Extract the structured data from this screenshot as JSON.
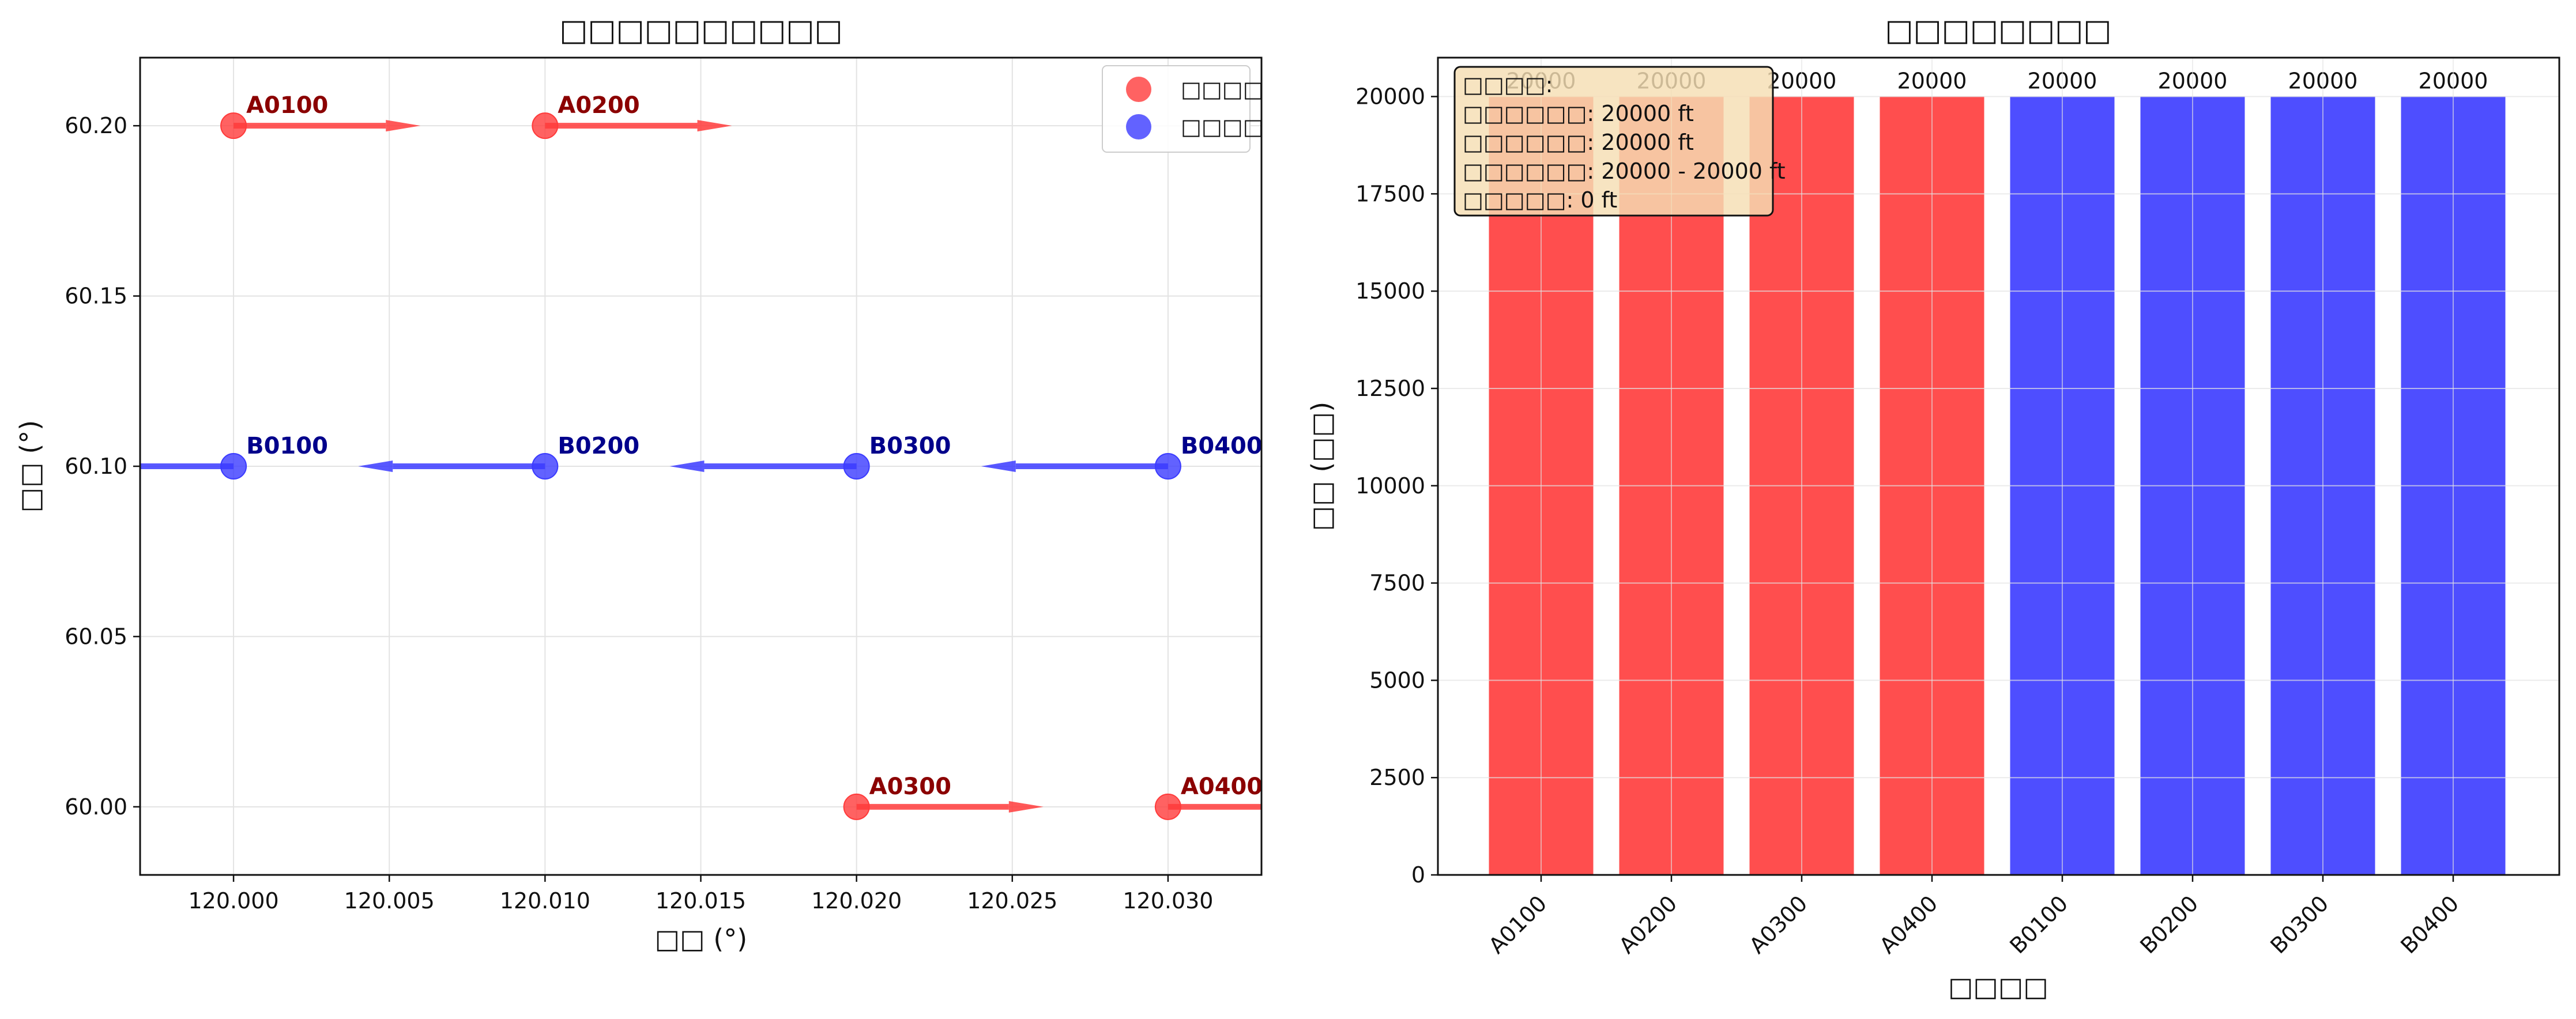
{
  "colors": {
    "group_a": "#ff3b3b",
    "group_b": "#3b3bff",
    "label_a": "#8b0000",
    "label_b": "#00008b",
    "grid": "#e3e3e3",
    "info_bg": "#f5deb3"
  },
  "chart_data": [
    {
      "type": "scatter",
      "title": "□□□□□□□□□□",
      "xlabel": "□□ (°)",
      "ylabel": "□□ (°)",
      "xlim": [
        119.997,
        120.033
      ],
      "ylim": [
        59.98,
        60.22
      ],
      "xticks": [
        "120.000",
        "120.005",
        "120.010",
        "120.015",
        "120.020",
        "120.025",
        "120.030"
      ],
      "yticks": [
        "60.00",
        "60.05",
        "60.10",
        "60.15",
        "60.20"
      ],
      "grid": true,
      "legend_position": "top-right",
      "legend": [
        "□□□□",
        "□□□□"
      ],
      "series": [
        {
          "name": "□□□□",
          "points": [
            {
              "label": "A0100",
              "x": 120.0,
              "y": 60.2,
              "dx": 0.006
            },
            {
              "label": "A0200",
              "x": 120.01,
              "y": 60.2,
              "dx": 0.006
            },
            {
              "label": "A0300",
              "x": 120.02,
              "y": 60.0,
              "dx": 0.006
            },
            {
              "label": "A0400",
              "x": 120.03,
              "y": 60.0,
              "dx": 0.006
            }
          ]
        },
        {
          "name": "□□□□",
          "points": [
            {
              "label": "B0100",
              "x": 120.0,
              "y": 60.1,
              "dx": -0.006
            },
            {
              "label": "B0200",
              "x": 120.01,
              "y": 60.1,
              "dx": -0.006
            },
            {
              "label": "B0300",
              "x": 120.02,
              "y": 60.1,
              "dx": -0.006
            },
            {
              "label": "B0400",
              "x": 120.03,
              "y": 60.1,
              "dx": -0.006
            }
          ]
        }
      ]
    },
    {
      "type": "bar",
      "title": "□□□□□□□□",
      "xlabel": "□□□□",
      "ylabel": "□□ (□□)",
      "ylim": [
        0,
        21000
      ],
      "yticks": [
        "0",
        "2500",
        "5000",
        "7500",
        "10000",
        "12500",
        "15000",
        "17500",
        "20000"
      ],
      "grid": true,
      "categories": [
        "A0100",
        "A0200",
        "A0300",
        "A0400",
        "B0100",
        "B0200",
        "B0300",
        "B0400"
      ],
      "values": [
        20000,
        20000,
        20000,
        20000,
        20000,
        20000,
        20000,
        20000
      ],
      "bar_groups": [
        "a",
        "a",
        "a",
        "a",
        "b",
        "b",
        "b",
        "b"
      ],
      "data_labels": [
        "20000",
        "20000",
        "20000",
        "20000",
        "20000",
        "20000",
        "20000",
        "20000"
      ],
      "annotation": [
        "□□□□:",
        "□□□□□□: 20000 ft",
        "□□□□□□: 20000 ft",
        "□□□□□□: 20000 - 20000 ft",
        "□□□□□: 0 ft"
      ]
    }
  ]
}
